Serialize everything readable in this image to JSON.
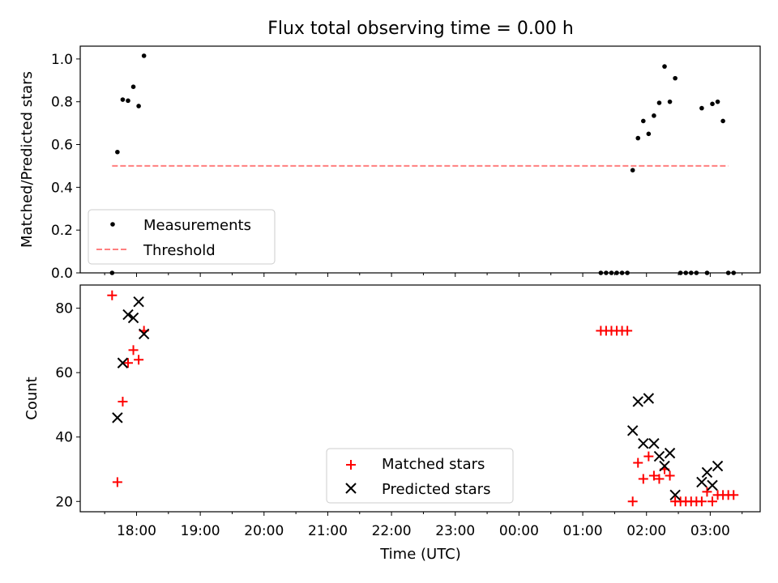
{
  "chart_data": [
    {
      "type": "scatter",
      "title": "Flux total observing time = 0.00 h",
      "xlabel": "",
      "ylabel": "Matched/Predicted stars",
      "ylim": [
        0,
        1.06
      ],
      "yticks": [
        0.0,
        0.2,
        0.4,
        0.6,
        0.8,
        1.0
      ],
      "ytick_labels": [
        "0.0",
        "0.2",
        "0.4",
        "0.6",
        "0.8",
        "1.0"
      ],
      "x_range": [
        "17:07",
        "03:47"
      ],
      "legend_position": "lower-left",
      "series": [
        {
          "name": "Measurements",
          "marker": "dot",
          "color": "#000000",
          "x": [
            "17:37",
            "17:42",
            "17:47",
            "17:52",
            "17:57",
            "18:02",
            "18:07",
            "01:17",
            "01:22",
            "01:27",
            "01:32",
            "01:37",
            "01:42",
            "01:47",
            "01:52",
            "01:57",
            "02:02",
            "02:07",
            "02:12",
            "02:17",
            "02:22",
            "02:27",
            "02:32",
            "02:37",
            "02:42",
            "02:47",
            "02:52",
            "02:57",
            "03:02",
            "03:07",
            "03:12",
            "03:17",
            "03:22"
          ],
          "y": [
            0.0,
            0.565,
            0.81,
            0.805,
            0.87,
            0.78,
            1.015,
            0.0,
            0.0,
            0.0,
            0.0,
            0.0,
            0.0,
            0.48,
            0.63,
            0.71,
            0.65,
            0.735,
            0.795,
            0.965,
            0.8,
            0.91,
            0.0,
            0.0,
            0.0,
            0.0,
            0.77,
            0.0,
            0.79,
            0.8,
            0.71,
            0.0,
            0.0
          ]
        },
        {
          "name": "Threshold",
          "style": "dashed",
          "color": "#ff7f7f",
          "x": [
            "17:37",
            "03:17"
          ],
          "y": [
            0.5,
            0.5
          ]
        }
      ]
    },
    {
      "type": "scatter",
      "title": "",
      "xlabel": "Time (UTC)",
      "ylabel": "Count",
      "ylim": [
        16.8,
        87.2
      ],
      "yticks": [
        20,
        40,
        60,
        80
      ],
      "ytick_labels": [
        "20",
        "40",
        "60",
        "80"
      ],
      "xticks": [
        "18:00",
        "19:00",
        "20:00",
        "21:00",
        "22:00",
        "23:00",
        "00:00",
        "01:00",
        "02:00",
        "03:00"
      ],
      "x_range": [
        "17:07",
        "03:47"
      ],
      "legend_position": "lower-center",
      "series": [
        {
          "name": "Matched stars",
          "marker": "plus",
          "color": "#ff0000",
          "x": [
            "17:37",
            "17:42",
            "17:47",
            "17:52",
            "17:57",
            "18:02",
            "18:07",
            "01:17",
            "01:22",
            "01:27",
            "01:32",
            "01:37",
            "01:42",
            "01:47",
            "01:52",
            "01:57",
            "02:02",
            "02:07",
            "02:12",
            "02:17",
            "02:22",
            "02:27",
            "02:32",
            "02:37",
            "02:42",
            "02:47",
            "02:52",
            "02:57",
            "03:02",
            "03:07",
            "03:12",
            "03:17",
            "03:22"
          ],
          "y": [
            84,
            26,
            51,
            63,
            67,
            64,
            73,
            73,
            73,
            73,
            73,
            73,
            73,
            20,
            32,
            27,
            34,
            28,
            27,
            30,
            28,
            20,
            20,
            20,
            20,
            20,
            20,
            23,
            20,
            22,
            22,
            22,
            22
          ]
        },
        {
          "name": "Predicted stars",
          "marker": "x",
          "color": "#000000",
          "x": [
            "17:42",
            "17:47",
            "17:52",
            "17:57",
            "18:02",
            "18:07",
            "01:47",
            "01:52",
            "01:57",
            "02:02",
            "02:07",
            "02:12",
            "02:17",
            "02:22",
            "02:27",
            "02:52",
            "02:57",
            "03:02",
            "03:07"
          ],
          "y": [
            46,
            63,
            78,
            77,
            82,
            72,
            42,
            51,
            38,
            52,
            38,
            34,
            31,
            35,
            22,
            26,
            29,
            25,
            31
          ]
        }
      ]
    }
  ]
}
